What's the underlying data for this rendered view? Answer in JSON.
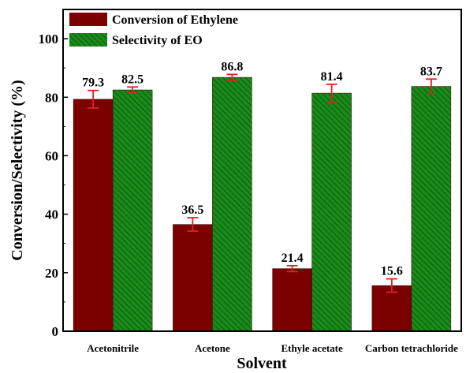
{
  "chart_data": {
    "type": "bar",
    "categories": [
      "Acetonitrile",
      "Acetone",
      "Ethyle acetate",
      "Carbon tetrachloride"
    ],
    "series": [
      {
        "name": "Conversion of Ethylene",
        "values": [
          79.3,
          36.5,
          21.4,
          15.6
        ],
        "labels": [
          "79.3",
          "36.5",
          "21.4",
          "15.6"
        ],
        "errors": [
          3.0,
          2.3,
          1.0,
          2.3
        ],
        "color": "#7b0000",
        "pattern": "solid"
      },
      {
        "name": "Selectivity of EO",
        "values": [
          82.5,
          86.8,
          81.4,
          83.7
        ],
        "labels": [
          "82.5",
          "86.8",
          "81.4",
          "83.7"
        ],
        "errors": [
          1.0,
          1.0,
          3.0,
          2.5
        ],
        "color": "#1a8a1a",
        "pattern": "diagonal-hatch"
      }
    ],
    "xlabel": "Solvent",
    "ylabel": "Conversion/Selectivity (%)",
    "ylim": [
      0,
      110
    ],
    "yticks": [
      0,
      20,
      40,
      60,
      80,
      100
    ],
    "grid": false,
    "legend_position": "top-left",
    "error_bar_color": "#e02020"
  }
}
